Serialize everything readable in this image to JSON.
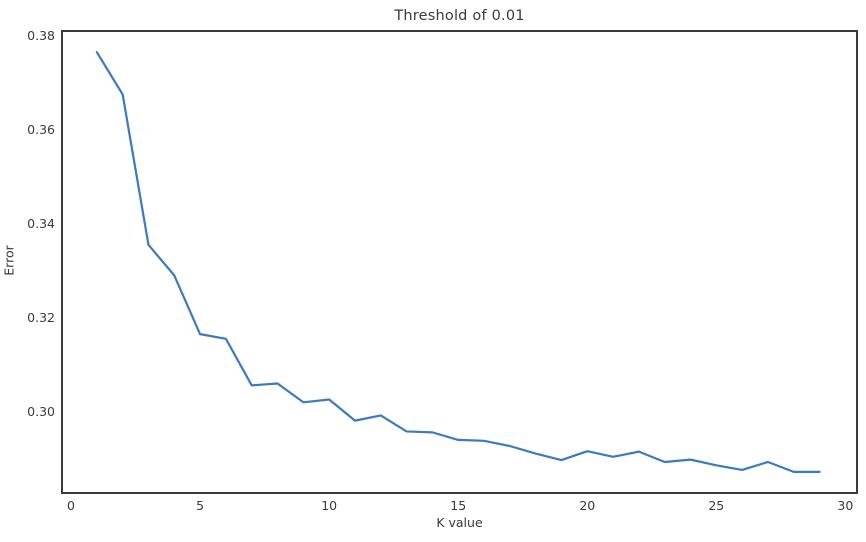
{
  "chart_data": {
    "type": "line",
    "title": "Threshold of 0.01",
    "xlabel": "K value",
    "ylabel": "Error",
    "x": [
      1,
      2,
      3,
      4,
      5,
      6,
      7,
      8,
      9,
      10,
      11,
      12,
      13,
      14,
      15,
      16,
      17,
      18,
      19,
      20,
      21,
      22,
      23,
      24,
      25,
      26,
      27,
      28,
      29
    ],
    "y": [
      0.3765,
      0.3675,
      0.3355,
      0.329,
      0.3165,
      0.3155,
      0.3056,
      0.306,
      0.302,
      0.3026,
      0.2981,
      0.2992,
      0.2958,
      0.2956,
      0.294,
      0.2938,
      0.2927,
      0.2911,
      0.2897,
      0.2916,
      0.2904,
      0.2915,
      0.2893,
      0.2898,
      0.2886,
      0.2876,
      0.2893,
      0.2872,
      0.2872
    ],
    "xticks": [
      0,
      5,
      10,
      15,
      20,
      25,
      30
    ],
    "xtick_labels": [
      "0",
      "5",
      "10",
      "15",
      "20",
      "25",
      "30"
    ],
    "yticks": [
      0.3,
      0.32,
      0.34,
      0.36,
      0.38
    ],
    "ytick_labels": [
      "0.30",
      "0.32",
      "0.34",
      "0.36",
      "0.38"
    ],
    "xlim": [
      -0.35,
      30.45
    ],
    "ylim": [
      0.2827,
      0.381
    ],
    "grid": false,
    "legend_position": "none",
    "colors": {
      "line": "#3b79c2",
      "spine": "#3a3a3a",
      "text": "#3a3a3a",
      "background": "#ffffff"
    }
  }
}
